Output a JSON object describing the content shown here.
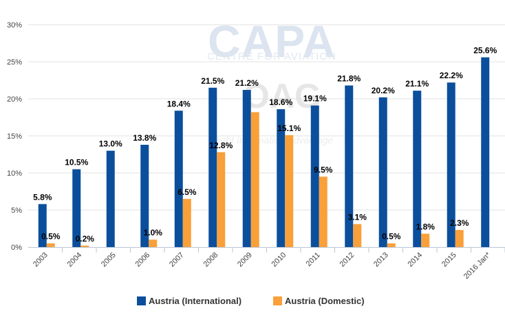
{
  "watermark": {
    "brand": "CAPA",
    "brand_sub": "CENTRE FOR AVIATION",
    "partner": "OAG",
    "partner_tag": "Flight Information Advantage"
  },
  "colors": {
    "international": "#0b4f9c",
    "domestic": "#f9a03a",
    "grid": "#e2e2e2",
    "axis": "#b9c6d6"
  },
  "chart_data": {
    "type": "bar",
    "title": "",
    "xlabel": "",
    "ylabel": "",
    "ylim": [
      0,
      30
    ],
    "yticks": [
      "0%",
      "5%",
      "10%",
      "15%",
      "20%",
      "25%",
      "30%"
    ],
    "grid": true,
    "legend_position": "bottom",
    "categories": [
      "2003",
      "2004",
      "2005",
      "2006",
      "2007",
      "2008",
      "2009",
      "2010",
      "2011",
      "2012",
      "2013",
      "2014",
      "2015",
      "2016 Jan*"
    ],
    "series": [
      {
        "name": "Austria (International)",
        "values": [
          5.8,
          10.5,
          13.0,
          13.8,
          18.4,
          21.5,
          21.2,
          18.6,
          19.1,
          21.8,
          20.2,
          21.1,
          22.2,
          25.6
        ],
        "labels": [
          "5.8%",
          "10.5%",
          "13.0%",
          "13.8%",
          "18.4%",
          "21.5%",
          "21.2%",
          "18.6%",
          "19.1%",
          "21.8%",
          "20.2%",
          "21.1%",
          "22.2%",
          "25.6%"
        ]
      },
      {
        "name": "Austria (Domestic)",
        "values": [
          0.5,
          0.2,
          null,
          1.0,
          6.5,
          12.8,
          18.2,
          15.1,
          9.5,
          3.1,
          0.5,
          1.8,
          2.3,
          null
        ],
        "labels": [
          "0.5%",
          "0.2%",
          "",
          "1.0%",
          "6.5%",
          "12.8%",
          "",
          "15.1%",
          "9.5%",
          "3.1%",
          "0.5%",
          "1.8%",
          "2.3%",
          ""
        ]
      }
    ]
  }
}
